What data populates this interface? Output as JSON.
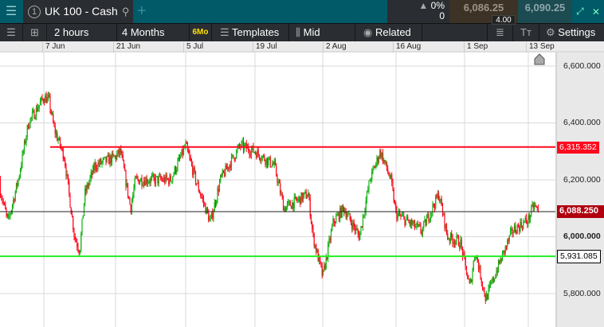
{
  "header": {
    "menu_icon": "hamburger-icon",
    "tab_number": "1",
    "instrument": "UK 100 - Cash",
    "search_icon": "search-icon",
    "add_icon": "plus-icon",
    "change_pct": "0%",
    "change_abs": "0",
    "bid": "6,086.25",
    "ask": "6,090.25",
    "spread": "4.00"
  },
  "toolbar": {
    "interval": "2 hours",
    "range": "4 Months",
    "range_badge": "6Mo",
    "templates": "Templates",
    "price_type": "Mid",
    "related": "Related",
    "settings": "Settings"
  },
  "date_axis": [
    "7 Jun",
    "21 Jun",
    "5 Jul",
    "19 Jul",
    "2 Aug",
    "16 Aug",
    "1 Sep",
    "13 Sep"
  ],
  "price_axis": [
    "6,600.000",
    "6,400.000",
    "6,200.000",
    "6,000.000",
    "5,800.000"
  ],
  "lines": {
    "resistance": "6,315.352",
    "current": "6,088.250",
    "support": "5,931.085"
  },
  "colors": {
    "up": "#12b012",
    "down": "#ff0a1e",
    "resistance": "#ff0a1e",
    "support": "#22ee22",
    "current": "#222222",
    "current_tag": "#b0000f"
  },
  "chart_data": {
    "type": "candlestick",
    "ylim": [
      5760,
      6660
    ],
    "approx_path": [
      [
        "May 29",
        6200
      ],
      [
        "May 31",
        6050
      ],
      [
        "Jun 2",
        6200
      ],
      [
        "Jun 4",
        6400
      ],
      [
        "Jun 7",
        6490
      ],
      [
        "Jun 8",
        6480
      ],
      [
        "Jun 9",
        6380
      ],
      [
        "Jun 11",
        6280
      ],
      [
        "Jun 13",
        6000
      ],
      [
        "Jun 14",
        5950
      ],
      [
        "Jun 15",
        6150
      ],
      [
        "Jun 17",
        6250
      ],
      [
        "Jun 21",
        6280
      ],
      [
        "Jun 22",
        6300
      ],
      [
        "Jun 24",
        6100
      ],
      [
        "Jun 25",
        6200
      ],
      [
        "Jul 2",
        6200
      ],
      [
        "Jul 5",
        6320
      ],
      [
        "Jul 7",
        6200
      ],
      [
        "Jul 10",
        6050
      ],
      [
        "Jul 12",
        6200
      ],
      [
        "Jul 16",
        6320
      ],
      [
        "Jul 19",
        6300
      ],
      [
        "Jul 23",
        6250
      ],
      [
        "Jul 25",
        6100
      ],
      [
        "Jul 30",
        6150
      ],
      [
        "Jul 31",
        6000
      ],
      [
        "Aug 2",
        5860
      ],
      [
        "Aug 4",
        6050
      ],
      [
        "Aug 6",
        6100
      ],
      [
        "Aug 9",
        6000
      ],
      [
        "Aug 11",
        6200
      ],
      [
        "Aug 13",
        6300
      ],
      [
        "Aug 15",
        6200
      ],
      [
        "Aug 16",
        6080
      ],
      [
        "Aug 22",
        6020
      ],
      [
        "Aug 26",
        6150
      ],
      [
        "Aug 28",
        6000
      ],
      [
        "Aug 31",
        5980
      ],
      [
        "Sep 2",
        5820
      ],
      [
        "Sep 3",
        5950
      ],
      [
        "Sep 5",
        5780
      ],
      [
        "Sep 7",
        5880
      ],
      [
        "Sep 10",
        6020
      ],
      [
        "Sep 13",
        6060
      ],
      [
        "Sep 14",
        6110
      ],
      [
        "Sep 15",
        6088
      ]
    ]
  }
}
